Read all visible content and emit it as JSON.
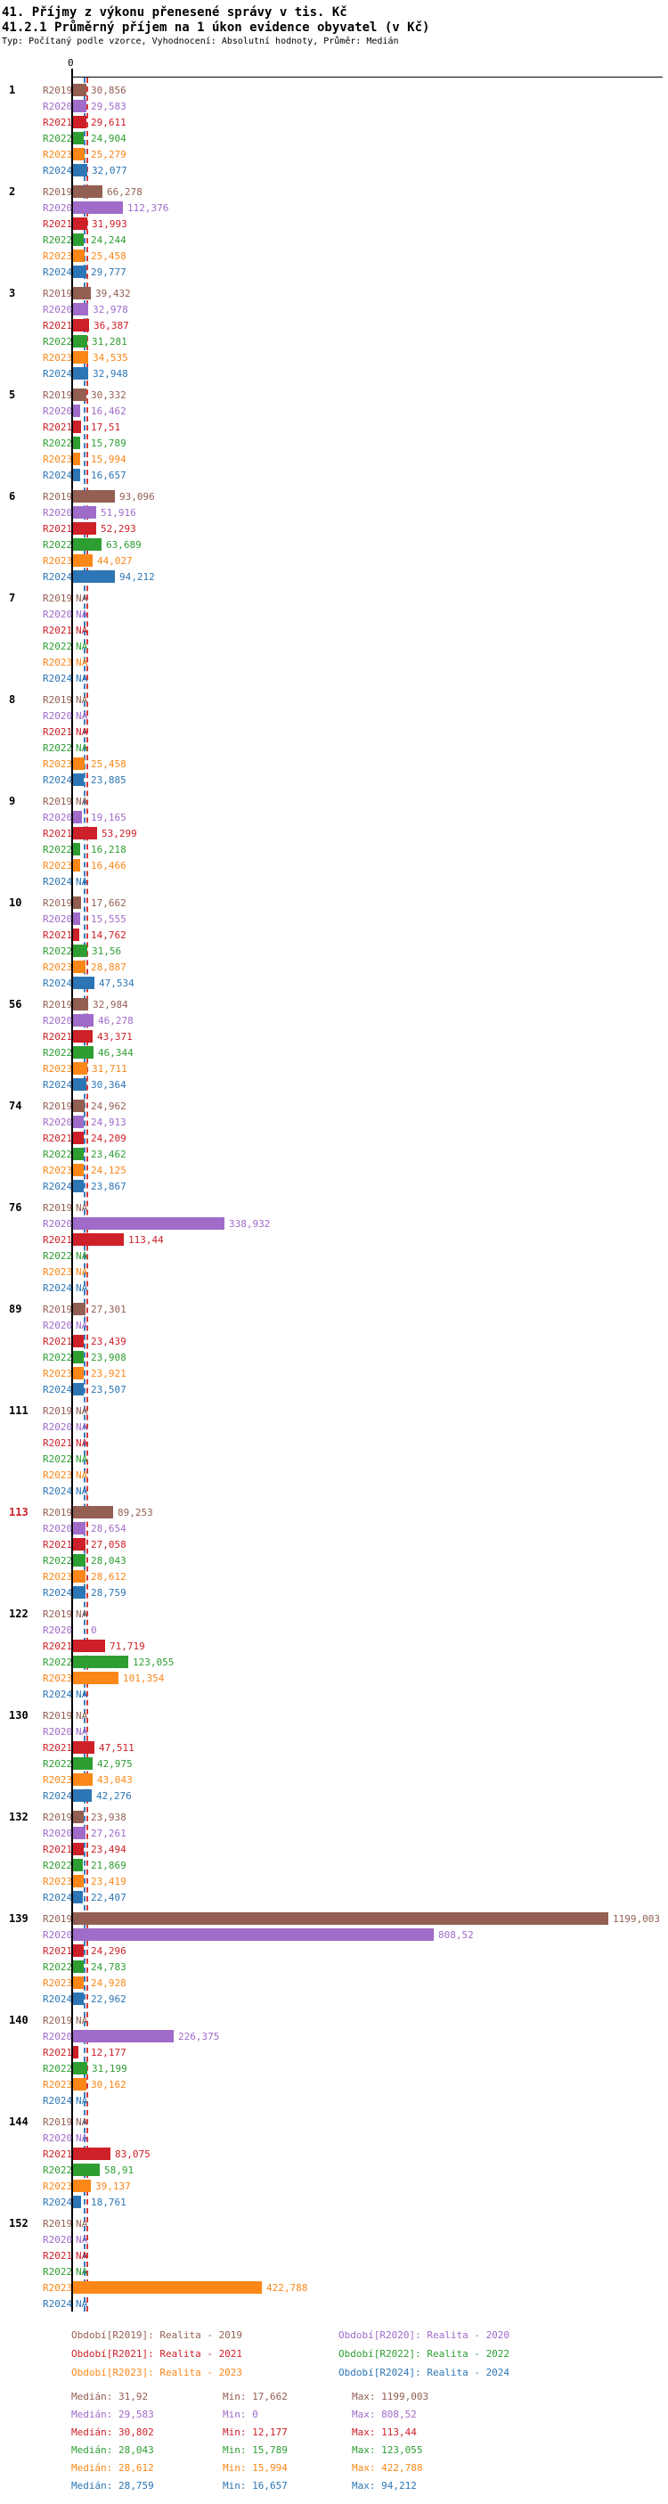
{
  "header": {
    "title1": "41. Příjmy z výkonu přenesené správy v tis. Kč",
    "title2": "41.2.1 Průměrný příjem na 1 úkon evidence obyvatel (v Kč)",
    "subtitle": "Typ: Počítaný podle vzorce, Vyhodnocení: Absolutní hodnoty, Průměr: Medián"
  },
  "chart_data": {
    "type": "bar",
    "orientation": "horizontal",
    "axis": {
      "zero_label": "0",
      "x_min": 0,
      "x_max_value": 1199.003
    },
    "na_text": "NA",
    "series": [
      {
        "key": "R2019",
        "label": "R2019",
        "color": "#935f53"
      },
      {
        "key": "R2020",
        "label": "R2020",
        "color": "#a06bc9"
      },
      {
        "key": "R2021",
        "label": "R2021",
        "color": "#ce2028"
      },
      {
        "key": "R2022",
        "label": "R2022",
        "color": "#2e9e33"
      },
      {
        "key": "R2023",
        "label": "R2023",
        "color": "#fb8718"
      },
      {
        "key": "R2024",
        "label": "R2024",
        "color": "#2d76b5"
      }
    ],
    "median_lines": [
      {
        "name": "median-blue",
        "value": 28.759,
        "color": "#3a7abf"
      },
      {
        "name": "median-red",
        "value": 31.92,
        "color": "#d43a3a"
      }
    ],
    "groups": [
      {
        "id": "1",
        "values": [
          "30,856",
          "29,583",
          "29,611",
          "24,904",
          "25,279",
          "32,077"
        ]
      },
      {
        "id": "2",
        "values": [
          "66,278",
          "112,376",
          "31,993",
          "24,244",
          "25,458",
          "29,777"
        ]
      },
      {
        "id": "3",
        "values": [
          "39,432",
          "32,978",
          "36,387",
          "31,281",
          "34,535",
          "32,948"
        ]
      },
      {
        "id": "5",
        "values": [
          "30,332",
          "16,462",
          "17,51",
          "15,789",
          "15,994",
          "16,657"
        ]
      },
      {
        "id": "6",
        "values": [
          "93,096",
          "51,916",
          "52,293",
          "63,689",
          "44,027",
          "94,212"
        ]
      },
      {
        "id": "7",
        "values": [
          "NA",
          "NA",
          "NA",
          "NA",
          "NA",
          "NA"
        ]
      },
      {
        "id": "8",
        "values": [
          "NA",
          "NA",
          "NA",
          "NA",
          "25,458",
          "23,885"
        ]
      },
      {
        "id": "9",
        "values": [
          "NA",
          "19,165",
          "53,299",
          "16,218",
          "16,466",
          "NA"
        ]
      },
      {
        "id": "10",
        "values": [
          "17,662",
          "15,555",
          "14,762",
          "31,56",
          "28,887",
          "47,534"
        ]
      },
      {
        "id": "56",
        "values": [
          "32,984",
          "46,278",
          "43,371",
          "46,344",
          "31,711",
          "30,364"
        ]
      },
      {
        "id": "74",
        "values": [
          "24,962",
          "24,913",
          "24,209",
          "23,462",
          "24,125",
          "23,867"
        ]
      },
      {
        "id": "76",
        "values": [
          "NA",
          "338,932",
          "113,44",
          "NA",
          "NA",
          "NA"
        ]
      },
      {
        "id": "89",
        "values": [
          "27,301",
          "NA",
          "23,439",
          "23,908",
          "23,921",
          "23,507"
        ]
      },
      {
        "id": "111",
        "values": [
          "NA",
          "NA",
          "NA",
          "NA",
          "NA",
          "NA"
        ]
      },
      {
        "id": "113",
        "id_color": "#ce2028",
        "values": [
          "89,253",
          "28,654",
          "27,058",
          "28,043",
          "28,612",
          "28,759"
        ]
      },
      {
        "id": "122",
        "values": [
          "NA",
          "0",
          "71,719",
          "123,055",
          "101,354",
          "NA"
        ]
      },
      {
        "id": "130",
        "values": [
          "NA",
          "NA",
          "47,511",
          "42,975",
          "43,043",
          "42,276"
        ]
      },
      {
        "id": "132",
        "values": [
          "23,938",
          "27,261",
          "23,494",
          "21,869",
          "23,419",
          "22,407"
        ]
      },
      {
        "id": "139",
        "values": [
          "1199,003",
          "808,52",
          "24,296",
          "24,783",
          "24,928",
          "22,962"
        ]
      },
      {
        "id": "140",
        "values": [
          "NA",
          "226,375",
          "12,177",
          "31,199",
          "30,162",
          "NA"
        ]
      },
      {
        "id": "144",
        "values": [
          "NA",
          "NA",
          "83,075",
          "58,91",
          "39,137",
          "18,761"
        ]
      },
      {
        "id": "152",
        "values": [
          "NA",
          "NA",
          "NA",
          "NA",
          "422,788",
          "NA"
        ]
      }
    ]
  },
  "legend": {
    "items": [
      {
        "year": "R2019",
        "label": "Období[R2019]: Realita - 2019",
        "color": "#935f53"
      },
      {
        "year": "R2020",
        "label": "Období[R2020]: Realita - 2020",
        "color": "#a06bc9"
      },
      {
        "year": "R2021",
        "label": "Období[R2021]: Realita - 2021",
        "color": "#ce2028"
      },
      {
        "year": "R2022",
        "label": "Období[R2022]: Realita - 2022",
        "color": "#2e9e33"
      },
      {
        "year": "R2023",
        "label": "Období[R2023]: Realita - 2023",
        "color": "#fb8718"
      },
      {
        "year": "R2024",
        "label": "Období[R2024]: Realita - 2024",
        "color": "#2d76b5"
      }
    ]
  },
  "stats": {
    "rows": [
      {
        "year": "R2019",
        "median": "Medián: 31,92",
        "min": "Min: 17,662",
        "max": "Max: 1199,003",
        "color": "#935f53"
      },
      {
        "year": "R2020",
        "median": "Medián: 29,583",
        "min": "Min: 0",
        "max": "Max: 808,52",
        "color": "#a06bc9"
      },
      {
        "year": "R2021",
        "median": "Medián: 30,802",
        "min": "Min: 12,177",
        "max": "Max: 113,44",
        "color": "#ce2028"
      },
      {
        "year": "R2022",
        "median": "Medián: 28,043",
        "min": "Min: 15,789",
        "max": "Max: 123,055",
        "color": "#2e9e33"
      },
      {
        "year": "R2023",
        "median": "Medián: 28,612",
        "min": "Min: 15,994",
        "max": "Max: 422,788",
        "color": "#fb8718"
      },
      {
        "year": "R2024",
        "median": "Medián: 28,759",
        "min": "Min: 16,657",
        "max": "Max: 94,212",
        "color": "#2d76b5"
      }
    ]
  }
}
